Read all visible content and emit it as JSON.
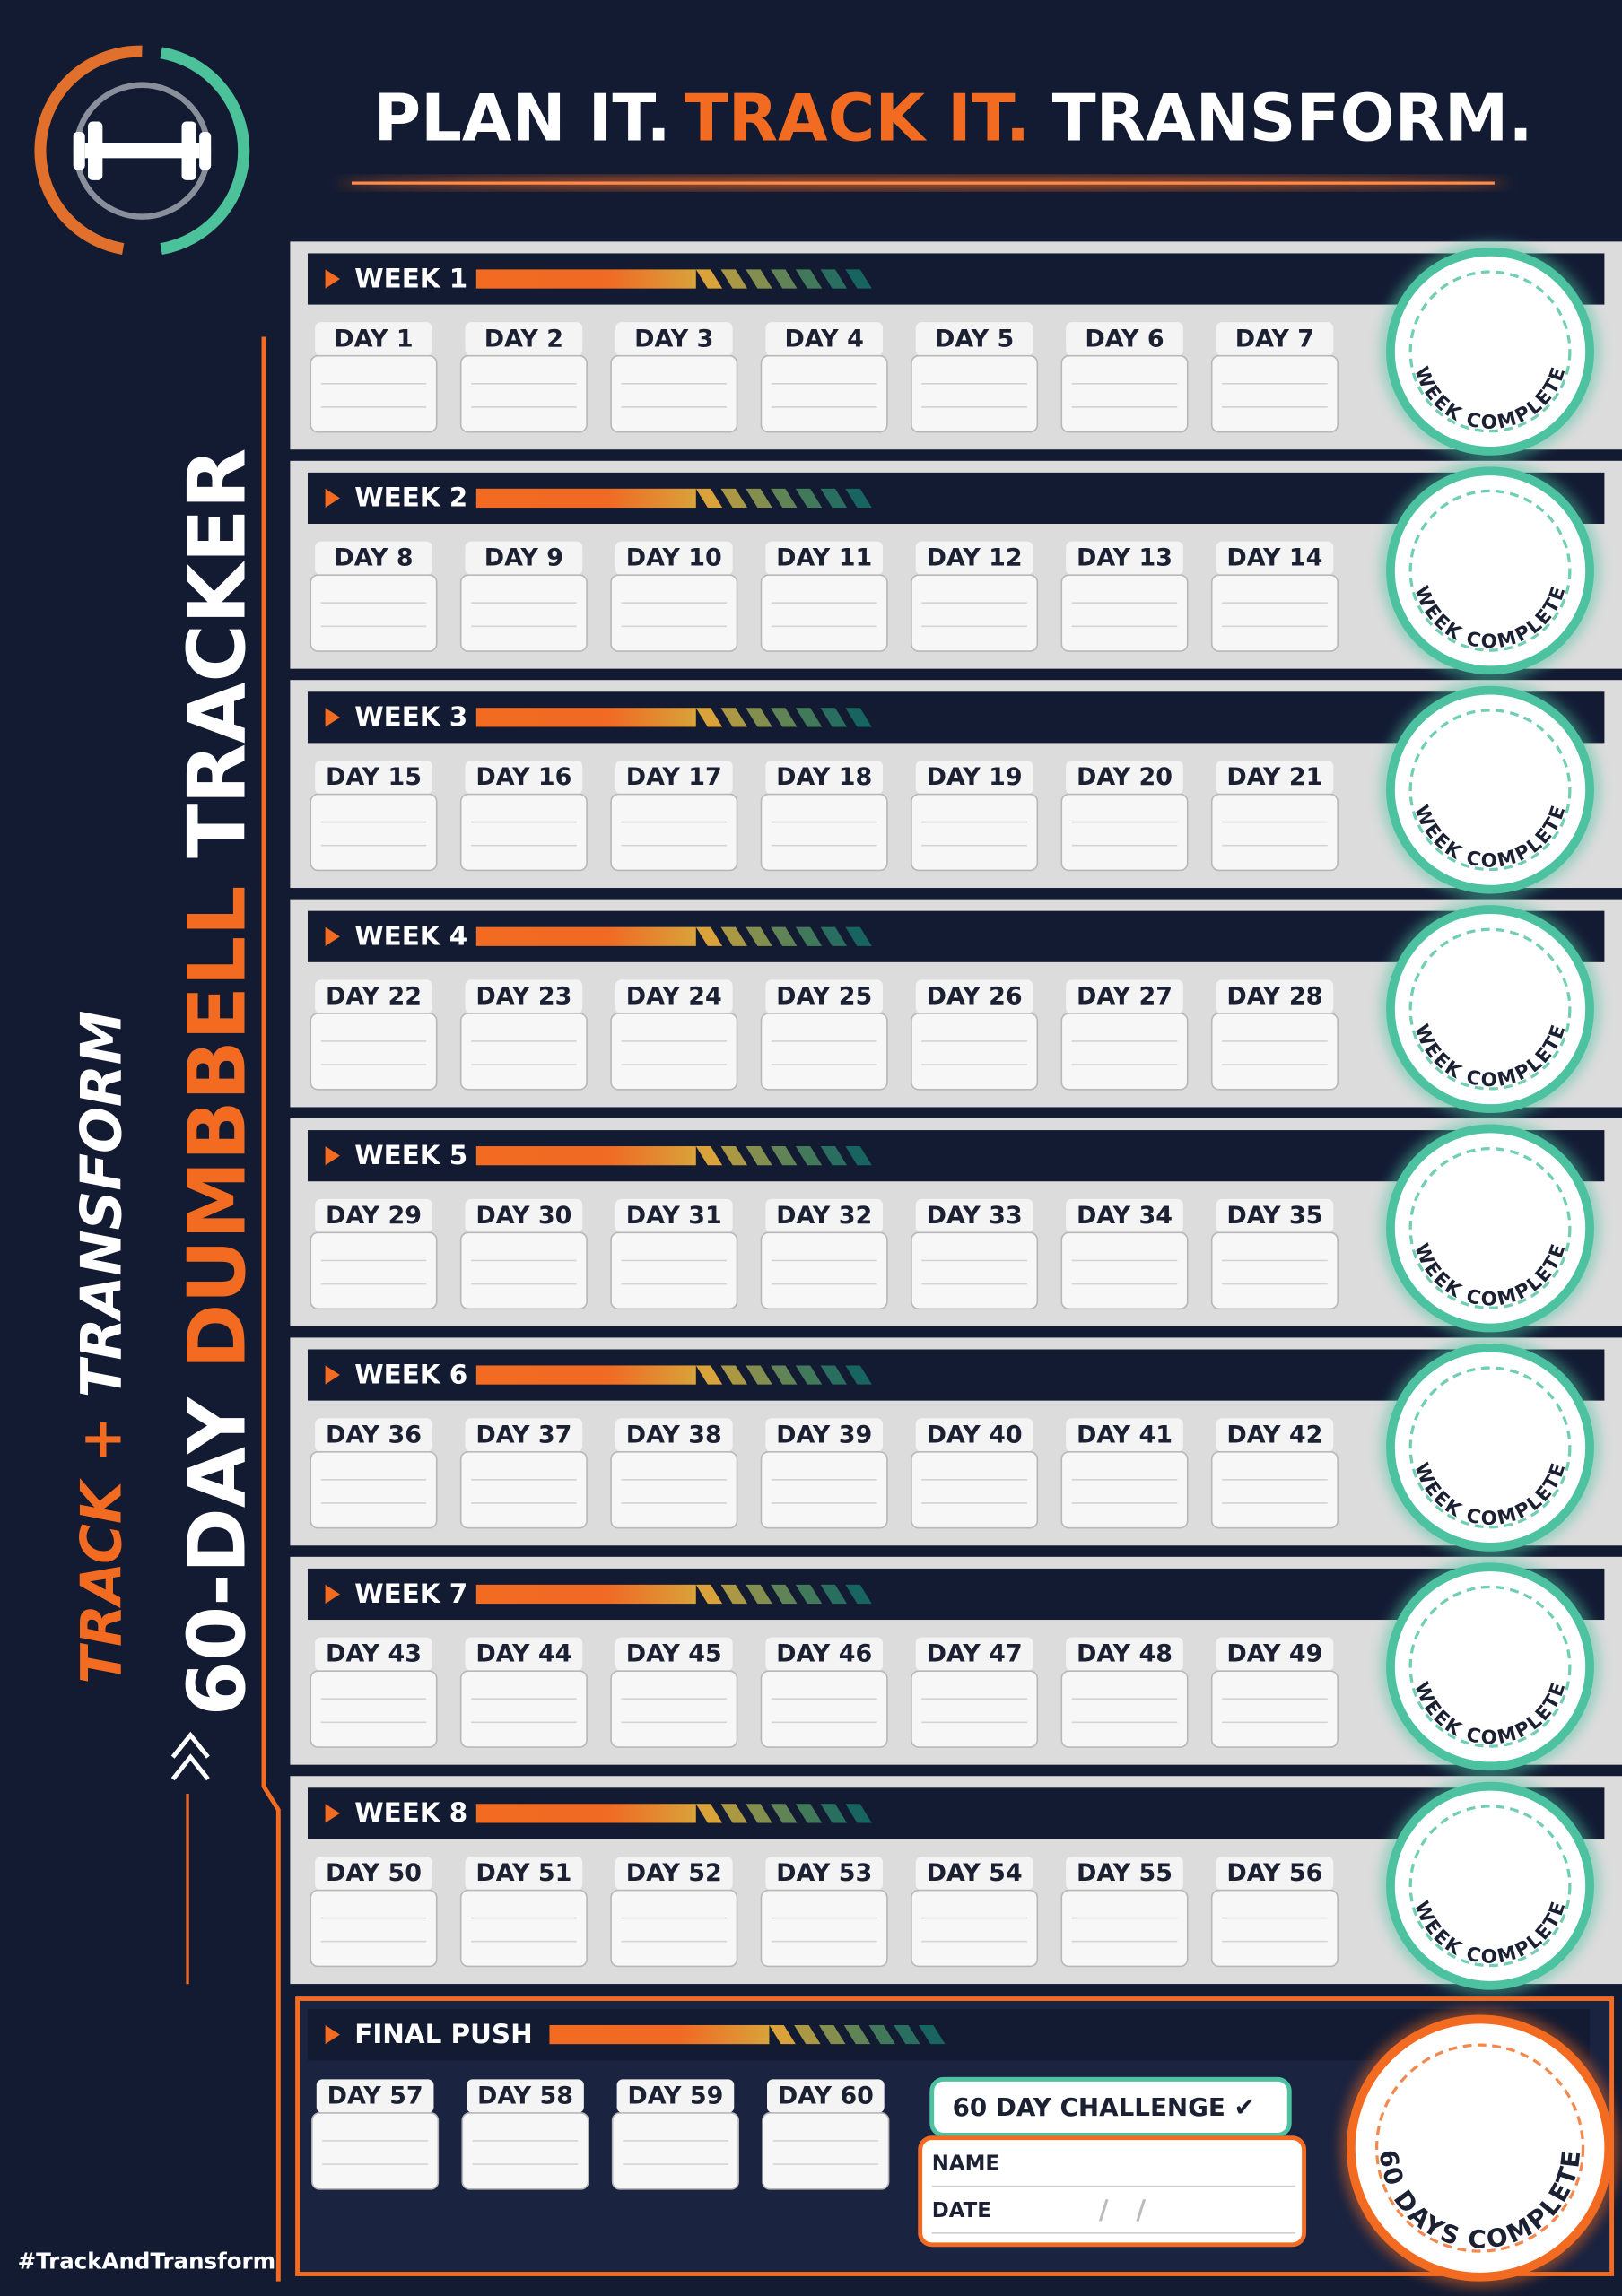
{
  "header": {
    "title": [
      "PLAN IT.",
      "TRACK IT.",
      "TRANSFORM."
    ]
  },
  "side": {
    "tagline": [
      "TRACK",
      "+",
      "TRANSFORM"
    ],
    "title": [
      "60-DAY",
      "DUMBBELL",
      "TRACKER"
    ]
  },
  "weeks": [
    {
      "label": "WEEK 1",
      "days": [
        "DAY 1",
        "DAY 2",
        "DAY 3",
        "DAY 4",
        "DAY 5",
        "DAY 6",
        "DAY 7"
      ],
      "badge": "WEEK COMPLETE"
    },
    {
      "label": "WEEK 2",
      "days": [
        "DAY 8",
        "DAY 9",
        "DAY 10",
        "DAY 11",
        "DAY 12",
        "DAY 13",
        "DAY 14"
      ],
      "badge": "WEEK COMPLETE"
    },
    {
      "label": "WEEK 3",
      "days": [
        "DAY 15",
        "DAY 16",
        "DAY 17",
        "DAY 18",
        "DAY 19",
        "DAY 20",
        "DAY 21"
      ],
      "badge": "WEEK COMPLETE"
    },
    {
      "label": "WEEK 4",
      "days": [
        "DAY 22",
        "DAY 23",
        "DAY 24",
        "DAY 25",
        "DAY 26",
        "DAY 27",
        "DAY 28"
      ],
      "badge": "WEEK COMPLETE"
    },
    {
      "label": "WEEK 5",
      "days": [
        "DAY 29",
        "DAY 30",
        "DAY 31",
        "DAY 32",
        "DAY 33",
        "DAY 34",
        "DAY 35"
      ],
      "badge": "WEEK COMPLETE"
    },
    {
      "label": "WEEK 6",
      "days": [
        "DAY 36",
        "DAY 37",
        "DAY 38",
        "DAY 39",
        "DAY 40",
        "DAY 41",
        "DAY 42"
      ],
      "badge": "WEEK COMPLETE"
    },
    {
      "label": "WEEK 7",
      "days": [
        "DAY 43",
        "DAY 44",
        "DAY 45",
        "DAY 46",
        "DAY 47",
        "DAY 48",
        "DAY 49"
      ],
      "badge": "WEEK COMPLETE"
    },
    {
      "label": "WEEK 8",
      "days": [
        "DAY 50",
        "DAY 51",
        "DAY 52",
        "DAY 53",
        "DAY 54",
        "DAY 55",
        "DAY 56"
      ],
      "badge": "WEEK COMPLETE"
    }
  ],
  "final": {
    "label": "FINAL PUSH",
    "days": [
      "DAY 57",
      "DAY 58",
      "DAY 59",
      "DAY 60"
    ],
    "challenge": "60 DAY CHALLENGE ✔",
    "fields": [
      "NAME",
      "DATE"
    ],
    "date_placeholder": "/   /",
    "badge": "60 DAYS COMPLETE"
  },
  "hashtag": "#TrackAndTransform"
}
